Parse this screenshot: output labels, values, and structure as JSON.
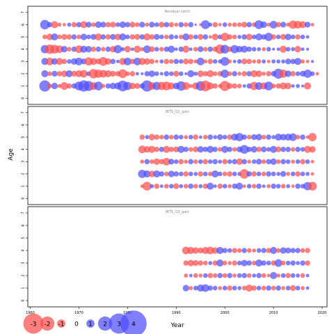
{
  "chart_data": {
    "type": "scatter",
    "description": "Bubble plot of residuals by year and age for three fleets; red = negative, blue = positive, size = magnitude",
    "xlabel": "Year",
    "ylabel": "Age",
    "xlim": [
      1959.5,
      2021
    ],
    "xticks": [
      1960,
      1970,
      1980,
      1990,
      2000,
      2010,
      2020
    ],
    "ylim": [
      -0.5,
      7.5
    ],
    "yticks": [
      0,
      1,
      2,
      3,
      4,
      5,
      6,
      7
    ],
    "colors": {
      "negative": "#ff4d4d",
      "positive": "#4d4dff"
    },
    "legend": {
      "placement": "bottom-left",
      "values": [
        -3,
        -2,
        -1,
        0,
        1,
        2,
        3,
        4
      ]
    },
    "panels": [
      {
        "title": "Residual catch",
        "year_start": 1963,
        "ages": [
          1,
          2,
          3,
          4,
          5,
          6
        ],
        "rows": {
          "1": [
            1.6,
            -0.5,
            0.8,
            -0.4,
            -1.0,
            -0.6,
            0.6,
            1.2,
            1.6,
            1.4,
            -1.0,
            1.2,
            -0.4,
            0.6,
            0.8,
            0.9,
            1.5,
            1.1,
            -0.8,
            -0.7,
            0.6,
            1.6,
            -1.0,
            1.1,
            -1.1,
            -1.2,
            -0.9,
            0.8,
            1.3,
            -1.0,
            -0.4,
            -0.9,
            1.3,
            -1.5,
            -0.9,
            -0.6,
            -0.4,
            -1.4,
            -0.7,
            -0.6,
            -0.5,
            0.3,
            0.6,
            -1.1,
            1.0,
            -0.9,
            1.2,
            -0.5,
            -0.6,
            -0.9,
            -0.8,
            0.3,
            0.4,
            0.2,
            -0.9
          ],
          "2": [
            0.9,
            -0.5,
            0.7,
            -0.6,
            -0.8,
            0.9,
            -0.7,
            -0.9,
            -1.0,
            0.5,
            -1.3,
            -1.1,
            -1.0,
            -0.9,
            -0.7,
            -0.6,
            -1.2,
            -0.5,
            -0.6,
            0.3,
            0.2,
            0.6,
            0.8,
            0.5,
            0.3,
            0.6,
            0.5,
            -0.7,
            0.5,
            0.2,
            0.9,
            0.4,
            -0.8,
            -0.6,
            -0.9,
            -0.5,
            -0.6,
            1.1,
            -0.5,
            0.6,
            -0.4,
            -0.6,
            0.6,
            -0.9,
            -0.8,
            -0.4,
            -0.6,
            0.6,
            1.4,
            -1.1,
            0.8,
            -0.6,
            0.5,
            0.7,
            1.1,
            0.5,
            -0.3
          ],
          "3": [
            0.9,
            -1.0,
            0.8,
            -0.9,
            -0.6,
            0.5,
            0.8,
            1.0,
            0.7,
            -1.1,
            -0.9,
            -0.7,
            -1.2,
            -0.8,
            0.6,
            0.3,
            -0.9,
            1.0,
            -0.6,
            1.0,
            -0.9,
            -0.8,
            -0.6,
            -0.3,
            0.4,
            -0.6,
            -0.5,
            0.6,
            0.5,
            -0.7,
            -0.6,
            -0.4,
            1.0,
            -0.4,
            -0.6,
            0.5,
            0.4,
            1.2,
            -0.4,
            0.3,
            0.5,
            -0.7,
            -0.6,
            -0.4,
            -0.5,
            0.4,
            -0.3,
            0.4,
            0.4,
            0.4,
            0.7,
            0.6,
            0.9,
            -0.4,
            -0.3,
            0.2
          ],
          "4": [
            1.1,
            -1.3,
            -1.2,
            -1.0,
            0.8,
            -0.5,
            0.6,
            -1.0,
            0.9,
            0.8,
            -0.6,
            0.6,
            -0.5,
            0.6,
            -0.8,
            1.1,
            0.4,
            -0.8,
            0.3,
            -0.9,
            -0.4,
            1.0,
            -0.7,
            0.5,
            -0.5,
            0.6,
            0.9,
            0.3,
            0.6,
            -0.9,
            0.3,
            -0.5,
            0.7,
            -0.5,
            0.6,
            -0.6,
            -1.3,
            1.2,
            -0.6,
            1.1,
            0.8,
            0.9,
            0.6,
            0.5,
            0.4,
            -0.4,
            0.5,
            0.2,
            0.3,
            -0.9,
            0.5,
            0.4,
            -0.8,
            0.3,
            0.2
          ],
          "5": [
            -0.5,
            -0.8,
            0.9,
            -0.5,
            -0.7,
            -0.6,
            0.6,
            -0.5,
            0.8,
            0.5,
            0.7,
            -0.9,
            0.6,
            -0.6,
            0.7,
            -0.8,
            0.9,
            0.5,
            -0.6,
            -0.7,
            0.6,
            -0.9,
            -0.6,
            0.7,
            0.5,
            -0.5,
            0.6,
            0.4,
            -0.5,
            0.9,
            -0.6,
            0.5,
            -0.7,
            0.6,
            -0.3,
            -0.8,
            0.5,
            -1.1,
            -0.6,
            -0.5,
            0.4,
            0.6,
            -0.8,
            0.5,
            0.9,
            0.6,
            1.1,
            -0.6,
            0.5,
            -0.7,
            0.8,
            0.5,
            -0.6,
            0.5,
            0.3
          ],
          "6": [
            1.3,
            0.6,
            -0.9,
            -0.4,
            -0.3,
            0.4,
            -0.6,
            0.6,
            -0.9,
            0.7,
            -0.5,
            0.8,
            0.7,
            -0.6,
            -0.7,
            0.5,
            0.8,
            0.6,
            -0.7,
            -0.5,
            0.7,
            -0.4,
            0.7,
            0.5,
            -0.7,
            0.6,
            -0.6,
            -0.4,
            0.6,
            -0.5,
            0.6,
            0.1,
            -0.2,
            1.2,
            0.4,
            -0.6,
            -0.3,
            0.5,
            -0.4,
            -0.5,
            -0.5,
            -0.7,
            0.6,
            -0.5,
            1.2,
            0.8,
            -0.4,
            1.0,
            -0.6,
            0.7,
            -0.4,
            -1.1,
            -1.0,
            -0.9,
            0.7,
            -0.3
          ]
        }
      },
      {
        "title": "IBTS_Q1_gam",
        "year_start": 1983,
        "ages": [
          1,
          2,
          3,
          4,
          5
        ],
        "rows": {
          "1": [
            -0.3,
            -1.2,
            0.4,
            -0.6,
            0.3,
            -0.5,
            0.5,
            -0.7,
            0.4,
            -0.5,
            0.6,
            -0.5,
            0.4,
            -0.6,
            0.9,
            0.3,
            -0.6,
            0.5,
            -0.4,
            0.6,
            0.9,
            -0.3,
            0.5,
            -0.5,
            0.6,
            0.3,
            -0.4,
            0.6,
            0.5,
            -0.5,
            0.4,
            -0.3,
            0.6,
            0.5,
            1.1,
            -1.2
          ],
          "2": [
            1.1,
            0.9,
            -0.8,
            0.9,
            0.6,
            -0.5,
            0.8,
            0.6,
            0.5,
            -0.6,
            0.5,
            0.4,
            -0.6,
            0.5,
            -0.5,
            0.9,
            0.5,
            -0.5,
            -0.6,
            0.5,
            0.4,
            -1.3,
            0.6,
            -0.6,
            0.5,
            -0.5,
            0.6,
            0.5,
            0.4,
            0.7,
            -0.4,
            0.5,
            -0.6,
            0.5,
            0.4,
            -0.3
          ],
          "3": [
            -0.4,
            0.6,
            -0.5,
            -0.8,
            -0.6,
            -1.0,
            0.7,
            0.5,
            -0.6,
            -0.4,
            0.6,
            -0.5,
            0.5,
            -0.6,
            0.5,
            0.6,
            0.4,
            -0.6,
            0.5,
            0.6,
            -0.8,
            0.6,
            -0.4,
            0.5,
            0.7,
            -0.5,
            0.6,
            0.8,
            -0.5,
            0.6,
            0.5,
            -0.4,
            0.5,
            -0.6,
            0.5,
            -0.3
          ],
          "4": [
            -1.0,
            -0.8,
            -0.9,
            -0.6,
            0.6,
            -0.9,
            -0.6,
            -0.7,
            0.9,
            0.6,
            -0.5,
            -0.7,
            0.8,
            0.6,
            0.9,
            0.6,
            -0.5,
            0.9,
            0.6,
            -0.5,
            0.7,
            1.2,
            0.6,
            0.8,
            -0.6,
            0.7,
            0.5,
            0.9,
            -0.7,
            0.6,
            0.6,
            -0.5,
            0.6,
            0.5,
            -0.9,
            -0.8
          ],
          "5": [
            -0.6,
            0.4,
            -0.8,
            -0.6,
            -0.5,
            0.6,
            -0.5,
            0.6,
            0.5,
            -0.4,
            0.5,
            -0.6,
            0.3,
            -0.5,
            0.6,
            0.4,
            0.7,
            0.5,
            -0.6,
            0.9,
            1.1,
            0.6,
            -0.5,
            0.7,
            0.8,
            -0.5,
            0.6,
            0.4,
            0.9,
            0.8,
            0.9,
            1.0,
            -0.5,
            0.6,
            -0.3,
            -1.1
          ]
        }
      },
      {
        "title": "IBTS_Q3_gam",
        "year_start": 1992,
        "ages": [
          1,
          2,
          3,
          4
        ],
        "rows": {
          "1": [
            0.8,
            -0.4,
            0.5,
            0.9,
            1.0,
            0.6,
            0.5,
            -0.4,
            0.5,
            -0.6,
            0.5,
            0.4,
            -0.5,
            -0.9,
            -0.6,
            0.5,
            -0.5,
            0.6,
            -0.5,
            0.6,
            -0.4,
            0.5,
            -0.7,
            0.5,
            -0.4,
            0.3
          ],
          "2": [
            -0.4,
            0.3,
            -0.5,
            -0.4,
            0.5,
            -0.6,
            -0.5,
            0.6,
            -0.5,
            0.6,
            -0.4,
            0.5,
            0.6,
            -0.5,
            0.4,
            0.6,
            -0.5,
            -0.3,
            0.9,
            -0.4,
            0.5,
            -0.6,
            0.5,
            0.4,
            -0.5,
            0.3
          ],
          "3": [
            -0.6,
            -0.8,
            -0.7,
            -0.6,
            -0.5,
            0.4,
            -0.6,
            0.9,
            -0.5,
            -0.4,
            -0.6,
            0.5,
            0.8,
            0.6,
            -0.5,
            0.9,
            0.6,
            0.5,
            -0.6,
            1.0,
            -0.5,
            0.5,
            0.6,
            0.4,
            0.6,
            -0.6
          ],
          "4": [
            -1.0,
            -0.9,
            -0.8,
            -0.7,
            -0.9,
            -1.0,
            -0.8,
            0.9,
            0.6,
            0.5,
            -0.6,
            -0.5,
            0.6,
            -0.5,
            -0.4,
            0.5,
            0.6,
            -0.6,
            0.9,
            -0.5,
            0.8,
            0.7,
            0.6,
            0.6,
            -0.5,
            -0.6
          ]
        }
      }
    ]
  }
}
